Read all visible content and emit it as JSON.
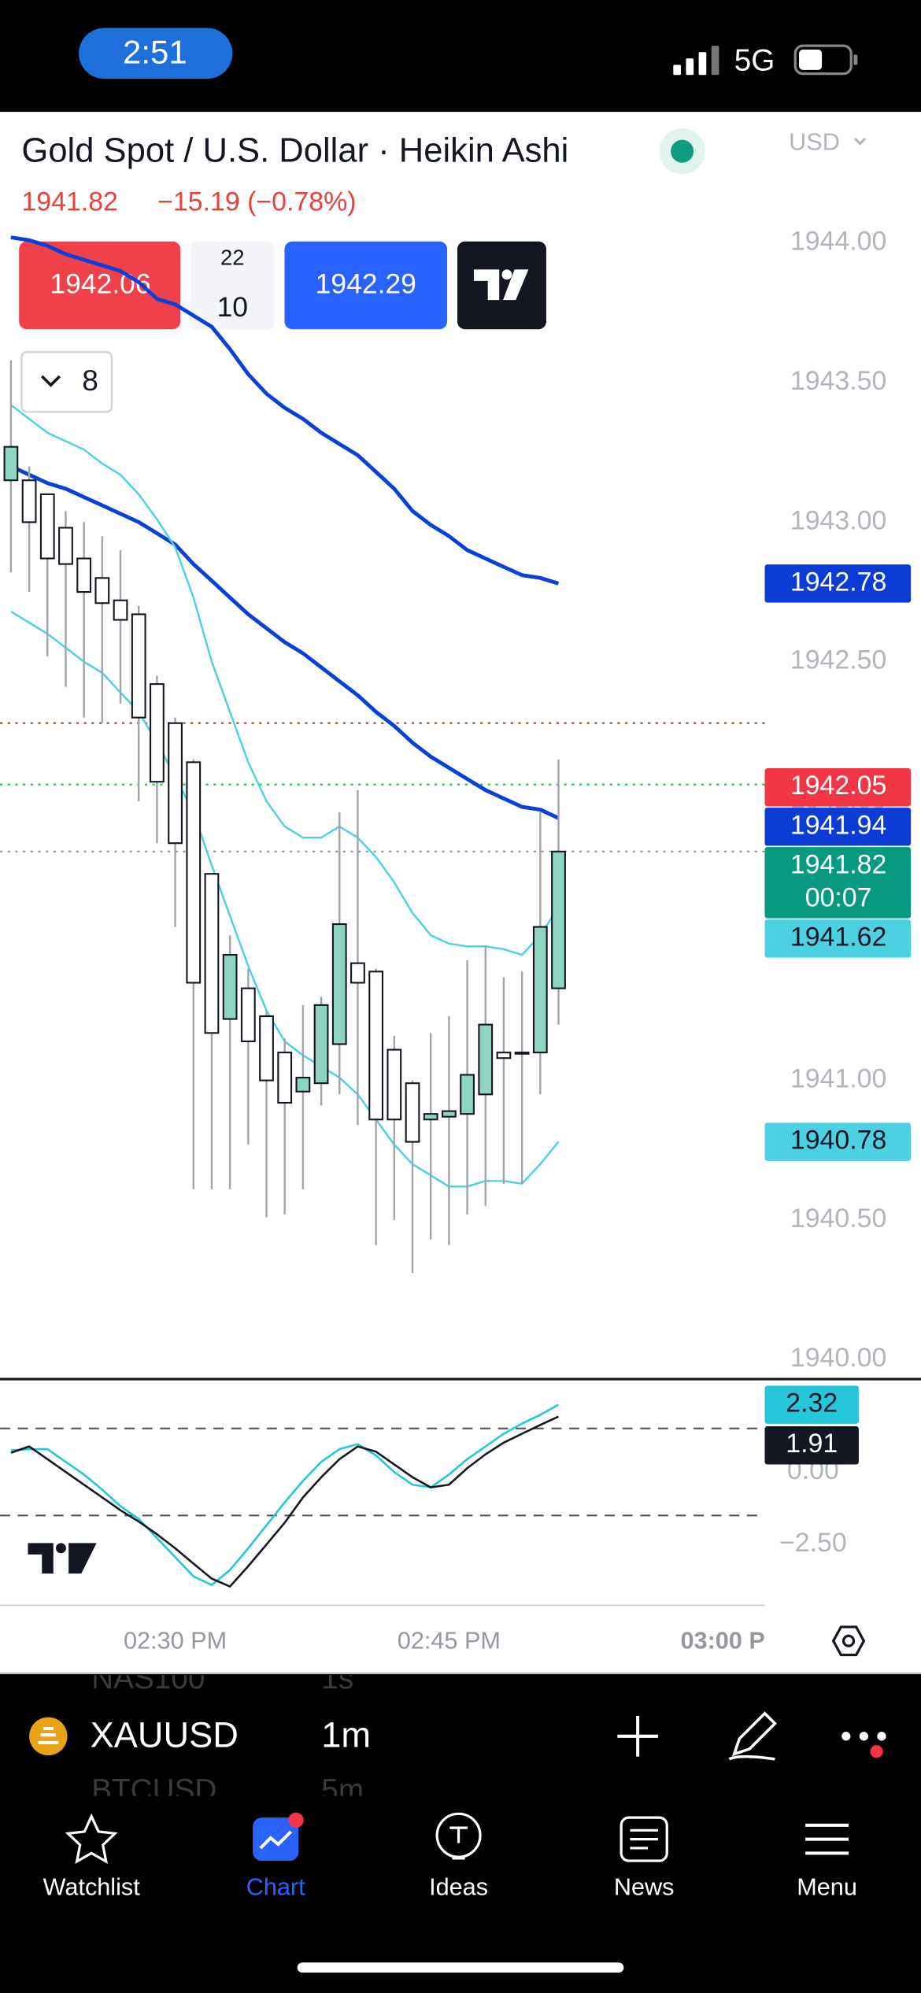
{
  "status_bar": {
    "time": "2:51",
    "network": "5G"
  },
  "header": {
    "title": "Gold Spot / U.S. Dollar · Heikin Ashi",
    "currency": "USD",
    "last_price": "1941.82",
    "change": "−15.19 (−0.78%)"
  },
  "trade_panel": {
    "sell": "1942.06",
    "spread_top": "22",
    "spread_bottom": "10",
    "buy": "1942.29"
  },
  "indicators_toggle": "8",
  "chart_data": {
    "type": "candlestick",
    "up_color": "#8fd3c1",
    "down_color": "#ffffff",
    "wick_color": "#a0a4ab",
    "open": [
      1943.15,
      1943.15,
      1943.1,
      1942.98,
      1942.87,
      1942.8,
      1942.72,
      1942.67,
      1942.42,
      1942.28,
      1942.14,
      1941.74,
      1941.22,
      1941.33,
      1941.23,
      1941.1,
      1940.96,
      1940.99,
      1941.13,
      1941.42,
      1941.39,
      1941.11,
      1940.99,
      1940.86,
      1940.87,
      1940.88,
      1940.95,
      1941.1,
      1941.1,
      1941.1,
      1941.33
    ],
    "high": [
      1943.58,
      1943.2,
      1943.1,
      1943.04,
      1943.0,
      1942.95,
      1942.9,
      1942.7,
      1942.45,
      1942.3,
      1942.15,
      1941.74,
      1941.52,
      1941.4,
      1941.25,
      1941.15,
      1941.27,
      1941.3,
      1941.96,
      1942.04,
      1941.4,
      1941.16,
      1941.0,
      1941.17,
      1941.23,
      1941.43,
      1941.48,
      1941.37,
      1941.39,
      1941.96,
      1942.15
    ],
    "low": [
      1942.82,
      1942.75,
      1942.52,
      1942.41,
      1942.3,
      1942.28,
      1942.35,
      1942.0,
      1941.85,
      1941.55,
      1940.61,
      1940.61,
      1940.61,
      1940.77,
      1940.51,
      1940.52,
      1940.61,
      1940.91,
      1940.95,
      1940.84,
      1940.41,
      1940.5,
      1940.31,
      1940.43,
      1940.41,
      1940.52,
      1940.55,
      1940.63,
      1940.63,
      1940.95,
      1941.2
    ],
    "close": [
      1943.27,
      1943.0,
      1942.87,
      1942.85,
      1942.75,
      1942.71,
      1942.65,
      1942.3,
      1942.07,
      1941.85,
      1941.35,
      1941.17,
      1941.45,
      1941.14,
      1941.0,
      1940.92,
      1941.01,
      1941.27,
      1941.56,
      1941.35,
      1940.86,
      1940.86,
      1940.78,
      1940.88,
      1940.89,
      1941.02,
      1941.2,
      1941.08,
      1941.1,
      1941.55,
      1941.82
    ],
    "lines": [
      {
        "color": "#0a3fd8",
        "width": 3,
        "values": [
          1944.02,
          1944.01,
          1943.99,
          1943.96,
          1943.94,
          1943.92,
          1943.9,
          1943.86,
          1943.8,
          1943.78,
          1943.74,
          1943.7,
          1943.62,
          1943.53,
          1943.46,
          1943.41,
          1943.37,
          1943.32,
          1943.28,
          1943.24,
          1943.18,
          1943.12,
          1943.04,
          1942.99,
          1942.95,
          1942.9,
          1942.87,
          1942.84,
          1942.81,
          1942.8,
          1942.78
        ]
      },
      {
        "color": "#0a3fd8",
        "width": 3,
        "values": [
          1943.2,
          1943.17,
          1943.14,
          1943.12,
          1943.09,
          1943.06,
          1943.03,
          1943.0,
          1942.96,
          1942.92,
          1942.85,
          1942.79,
          1942.73,
          1942.67,
          1942.62,
          1942.57,
          1942.53,
          1942.48,
          1942.43,
          1942.38,
          1942.32,
          1942.27,
          1942.21,
          1942.16,
          1942.12,
          1942.08,
          1942.04,
          1942.01,
          1941.98,
          1941.97,
          1941.94
        ]
      },
      {
        "color": "#4dd0e1",
        "width": 1.5,
        "values": [
          1943.42,
          1943.37,
          1943.32,
          1943.29,
          1943.26,
          1943.21,
          1943.17,
          1943.1,
          1943.01,
          1942.91,
          1942.73,
          1942.5,
          1942.32,
          1942.14,
          1942.0,
          1941.91,
          1941.87,
          1941.87,
          1941.91,
          1941.87,
          1941.8,
          1941.71,
          1941.6,
          1941.52,
          1941.49,
          1941.48,
          1941.48,
          1941.47,
          1941.45,
          1941.52,
          1941.62
        ]
      },
      {
        "color": "#4dd0e1",
        "width": 1.5,
        "values": [
          1942.68,
          1942.64,
          1942.6,
          1942.55,
          1942.5,
          1942.46,
          1942.39,
          1942.32,
          1942.21,
          1942.09,
          1941.96,
          1941.77,
          1941.59,
          1941.41,
          1941.25,
          1941.14,
          1941.09,
          1941.05,
          1941.01,
          1940.95,
          1940.86,
          1940.77,
          1940.7,
          1940.66,
          1940.62,
          1940.62,
          1940.64,
          1940.64,
          1940.63,
          1940.7,
          1940.78
        ]
      }
    ],
    "hlines": [
      {
        "value": 1942.28,
        "color": "#b5533c"
      },
      {
        "value": 1942.06,
        "color": "#2ecc40"
      },
      {
        "value": 1941.82,
        "color": "#9aa0a6"
      }
    ],
    "price_labels": [
      {
        "value": 1942.78,
        "color": "#0c3bd6",
        "text_color": "#ffffff"
      },
      {
        "value": 1942.05,
        "color": "#f23645",
        "text_color": "#ffffff"
      },
      {
        "value": 1941.94,
        "color": "#0c3bd6",
        "text_color": "#ffffff"
      },
      {
        "value": 1941.82,
        "color": "#089981",
        "text_color": "#ffffff",
        "countdown": "00:07"
      },
      {
        "value": 1941.62,
        "color": "#4dd0e1",
        "text_color": "#131722"
      },
      {
        "value": 1940.78,
        "color": "#4dd0e1",
        "text_color": "#131722"
      }
    ],
    "xlim": [
      -0.6,
      41.3
    ],
    "xticks": [
      {
        "value": 9,
        "label": "02:30 PM"
      },
      {
        "value": 24,
        "label": "02:45 PM"
      },
      {
        "value": 39,
        "label": "03:00 P"
      }
    ],
    "ylim": [
      1939.93,
      1944.47
    ],
    "yticks": [
      {
        "value": 1944,
        "label": "1944.00"
      },
      {
        "value": 1943.5,
        "label": "1943.50"
      },
      {
        "value": 1943,
        "label": "1943.00"
      },
      {
        "value": 1942.5,
        "label": "1942.50"
      },
      {
        "value": 1942,
        "label": "1942.00"
      },
      {
        "value": 1941.5,
        "label": "1941.50"
      },
      {
        "value": 1941,
        "label": "1941.00"
      },
      {
        "value": 1940.5,
        "label": "1940.50"
      },
      {
        "value": 1940,
        "label": "1940.00"
      }
    ],
    "oscillator": {
      "ylim": [
        -4.6,
        3.16
      ],
      "yticks": [
        {
          "value": 0,
          "label": "0.00"
        },
        {
          "value": -2.5,
          "label": "−2.50"
        }
      ],
      "levels": [
        1.5,
        -1.5
      ],
      "lines": [
        {
          "color": "#26c6da",
          "values": [
            0.75,
            0.79,
            0.79,
            0.35,
            -0.09,
            -0.61,
            -1.18,
            -1.62,
            -2.28,
            -2.94,
            -3.6,
            -3.9,
            -3.38,
            -2.63,
            -1.84,
            -1.05,
            -0.31,
            0.35,
            0.79,
            0.96,
            0.57,
            0.0,
            -0.44,
            -0.53,
            -0.09,
            0.44,
            0.88,
            1.32,
            1.67,
            1.97,
            2.32
          ]
        },
        {
          "color": "#131722",
          "values": [
            0.66,
            0.88,
            0.44,
            0.0,
            -0.44,
            -0.88,
            -1.32,
            -1.71,
            -2.15,
            -2.63,
            -3.16,
            -3.68,
            -3.95,
            -3.25,
            -2.5,
            -1.75,
            -0.88,
            -0.18,
            0.44,
            0.88,
            0.7,
            0.26,
            -0.18,
            -0.53,
            -0.44,
            0.13,
            0.61,
            1.01,
            1.32,
            1.62,
            1.91
          ]
        }
      ],
      "labels": [
        {
          "value": 2.32,
          "color": "#26c6da",
          "text_color": "#131722"
        },
        {
          "value": 1.91,
          "color": "#131722",
          "text_color": "#ffffff"
        }
      ]
    }
  },
  "toolbar": {
    "symbol": "XAUUSD",
    "interval": "1m",
    "behind": [
      {
        "symbol": "NAS100",
        "interval": "1s"
      },
      {
        "symbol": "BTCUSD",
        "interval": "5m"
      }
    ]
  },
  "tabs": [
    "Watchlist",
    "Chart",
    "Ideas",
    "News",
    "Menu"
  ]
}
